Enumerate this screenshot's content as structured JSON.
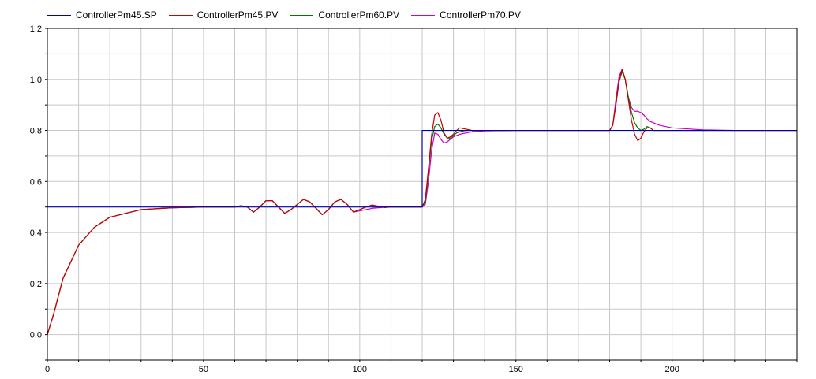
{
  "chart_data": {
    "type": "line",
    "title": "",
    "xlabel": "",
    "ylabel": "",
    "xlim": [
      0,
      240
    ],
    "ylim": [
      -0.1,
      1.2
    ],
    "x_ticks": [
      0,
      50,
      100,
      150,
      200
    ],
    "x_tick_labels": [
      "0",
      "50",
      "100",
      "150",
      "200"
    ],
    "y_ticks": [
      0.0,
      0.2,
      0.4,
      0.6,
      0.8,
      1.0,
      1.2
    ],
    "y_tick_labels": [
      "0.0",
      "0.2",
      "0.4",
      "0.6",
      "0.8",
      "1.0",
      "1.2"
    ],
    "grid": true,
    "legend_position": "top-left",
    "series": [
      {
        "name": "ControllerPm45.SP",
        "color": "#0000b4",
        "x": [
          0,
          120,
          120,
          180,
          240
        ],
        "y": [
          0.5,
          0.5,
          0.8,
          0.8,
          0.8
        ]
      },
      {
        "name": "ControllerPm45.PV",
        "color": "#c80000",
        "x": [
          0,
          2,
          5,
          10,
          15,
          20,
          30,
          40,
          50,
          60,
          62,
          64,
          66,
          68,
          70,
          72,
          74,
          76,
          78,
          80,
          82,
          84,
          86,
          88,
          90,
          92,
          94,
          96,
          98,
          100,
          102,
          104,
          106,
          108,
          110,
          115,
          120,
          121,
          122,
          123,
          124,
          125,
          126,
          127,
          128,
          129,
          130,
          131,
          132,
          134,
          136,
          140,
          150,
          160,
          170,
          180,
          181,
          182,
          183,
          184,
          185,
          186,
          187,
          188,
          189,
          190,
          191,
          192,
          193,
          194,
          196,
          200,
          210,
          220,
          240
        ],
        "y": [
          0.0,
          0.08,
          0.22,
          0.35,
          0.42,
          0.46,
          0.49,
          0.497,
          0.5,
          0.5,
          0.505,
          0.5,
          0.48,
          0.5,
          0.525,
          0.525,
          0.5,
          0.475,
          0.49,
          0.51,
          0.53,
          0.52,
          0.495,
          0.47,
          0.49,
          0.52,
          0.53,
          0.51,
          0.48,
          0.49,
          0.5,
          0.508,
          0.503,
          0.498,
          0.5,
          0.5,
          0.5,
          0.53,
          0.65,
          0.78,
          0.86,
          0.87,
          0.84,
          0.79,
          0.77,
          0.775,
          0.785,
          0.8,
          0.81,
          0.805,
          0.8,
          0.8,
          0.8,
          0.8,
          0.8,
          0.8,
          0.82,
          0.9,
          0.99,
          1.04,
          1.0,
          0.92,
          0.84,
          0.785,
          0.76,
          0.77,
          0.795,
          0.81,
          0.81,
          0.8,
          0.8,
          0.8,
          0.8,
          0.8,
          0.8
        ]
      },
      {
        "name": "ControllerPm60.PV",
        "color": "#007800",
        "x": [
          0,
          2,
          5,
          10,
          15,
          20,
          30,
          40,
          50,
          60,
          62,
          64,
          66,
          68,
          70,
          72,
          74,
          76,
          78,
          80,
          82,
          84,
          86,
          88,
          90,
          92,
          94,
          96,
          98,
          100,
          102,
          104,
          106,
          108,
          110,
          115,
          120,
          121,
          122,
          123,
          124,
          125,
          126,
          127,
          128,
          129,
          130,
          131,
          132,
          134,
          136,
          140,
          150,
          160,
          170,
          180,
          181,
          182,
          183,
          184,
          185,
          186,
          187,
          188,
          189,
          190,
          191,
          192,
          193,
          194,
          196,
          200,
          210,
          220,
          240
        ],
        "y": [
          0.0,
          0.08,
          0.22,
          0.35,
          0.42,
          0.46,
          0.49,
          0.497,
          0.5,
          0.5,
          0.505,
          0.5,
          0.48,
          0.5,
          0.525,
          0.525,
          0.5,
          0.475,
          0.49,
          0.51,
          0.53,
          0.52,
          0.495,
          0.47,
          0.49,
          0.52,
          0.53,
          0.51,
          0.48,
          0.49,
          0.5,
          0.506,
          0.502,
          0.499,
          0.5,
          0.5,
          0.5,
          0.52,
          0.64,
          0.76,
          0.815,
          0.825,
          0.81,
          0.785,
          0.77,
          0.77,
          0.78,
          0.79,
          0.795,
          0.8,
          0.8,
          0.8,
          0.8,
          0.8,
          0.8,
          0.8,
          0.82,
          0.9,
          0.99,
          1.03,
          1.0,
          0.93,
          0.87,
          0.83,
          0.81,
          0.8,
          0.805,
          0.815,
          0.81,
          0.8,
          0.8,
          0.8,
          0.8,
          0.8,
          0.8
        ]
      },
      {
        "name": "ControllerPm70.PV",
        "color": "#c800c8",
        "x": [
          0,
          2,
          5,
          10,
          15,
          20,
          30,
          40,
          50,
          60,
          62,
          64,
          66,
          68,
          70,
          72,
          74,
          76,
          78,
          80,
          82,
          84,
          86,
          88,
          90,
          92,
          94,
          96,
          98,
          100,
          102,
          104,
          106,
          108,
          110,
          115,
          120,
          121,
          122,
          123,
          124,
          125,
          126,
          127,
          128,
          129,
          130,
          131,
          132,
          134,
          136,
          140,
          150,
          160,
          170,
          180,
          181,
          182,
          183,
          184,
          185,
          186,
          187,
          188,
          189,
          190,
          191,
          192,
          193,
          194,
          196,
          200,
          210,
          220,
          240
        ],
        "y": [
          0.0,
          0.08,
          0.22,
          0.35,
          0.42,
          0.46,
          0.49,
          0.497,
          0.5,
          0.5,
          0.505,
          0.5,
          0.48,
          0.5,
          0.525,
          0.525,
          0.5,
          0.475,
          0.49,
          0.51,
          0.53,
          0.52,
          0.495,
          0.47,
          0.49,
          0.52,
          0.53,
          0.51,
          0.48,
          0.485,
          0.49,
          0.495,
          0.497,
          0.499,
          0.5,
          0.5,
          0.5,
          0.51,
          0.6,
          0.72,
          0.79,
          0.785,
          0.765,
          0.75,
          0.755,
          0.765,
          0.775,
          0.78,
          0.785,
          0.79,
          0.795,
          0.798,
          0.8,
          0.8,
          0.8,
          0.8,
          0.82,
          0.92,
          1.01,
          1.04,
          1.0,
          0.93,
          0.89,
          0.875,
          0.875,
          0.87,
          0.86,
          0.845,
          0.835,
          0.83,
          0.82,
          0.81,
          0.802,
          0.8,
          0.8
        ]
      }
    ]
  }
}
